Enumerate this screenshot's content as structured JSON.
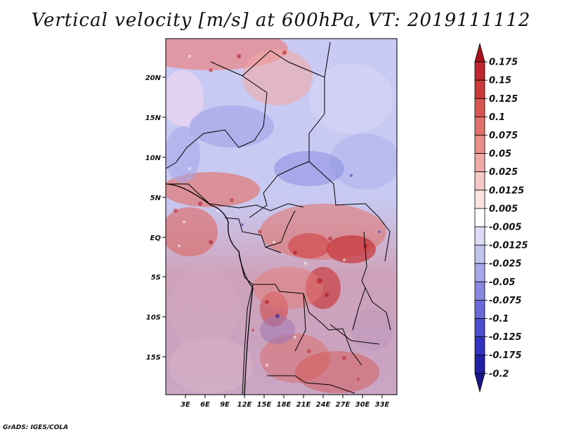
{
  "title": "Vertical velocity [m/s] at 600hPa, VT: 2019111112",
  "credit": "GrADS: IGES/COLA",
  "lat_labels": [
    "20N",
    "15N",
    "10N",
    "5N",
    "EQ",
    "5S",
    "10S",
    "15S"
  ],
  "lon_labels": [
    "3E",
    "6E",
    "9E",
    "12E",
    "15E",
    "18E",
    "21E",
    "24E",
    "27E",
    "30E",
    "33E"
  ],
  "colorbar": {
    "labels": [
      "0.175",
      "0.15",
      "0.125",
      "0.1",
      "0.075",
      "0.05",
      "0.025",
      "0.0125",
      "0.005",
      "-0.005",
      "-0.0125",
      "-0.025",
      "-0.05",
      "-0.075",
      "-0.1",
      "-0.125",
      "-0.175",
      "-0.2"
    ],
    "colors": [
      "#a8101c",
      "#c0262c",
      "#cc3a3a",
      "#d9554f",
      "#e2716a",
      "#e98e88",
      "#f0aaa6",
      "#f6c8c6",
      "#fbe4e3",
      "#ffffff",
      "#dcdcf6",
      "#c3c3f0",
      "#a7a7ea",
      "#8888e2",
      "#6a6ada",
      "#4d4dcf",
      "#3232c0",
      "#2020a8",
      "#16168a"
    ]
  },
  "colors": {
    "positive": "#c0262c",
    "negative": "#3232c0",
    "border": "#000000"
  }
}
